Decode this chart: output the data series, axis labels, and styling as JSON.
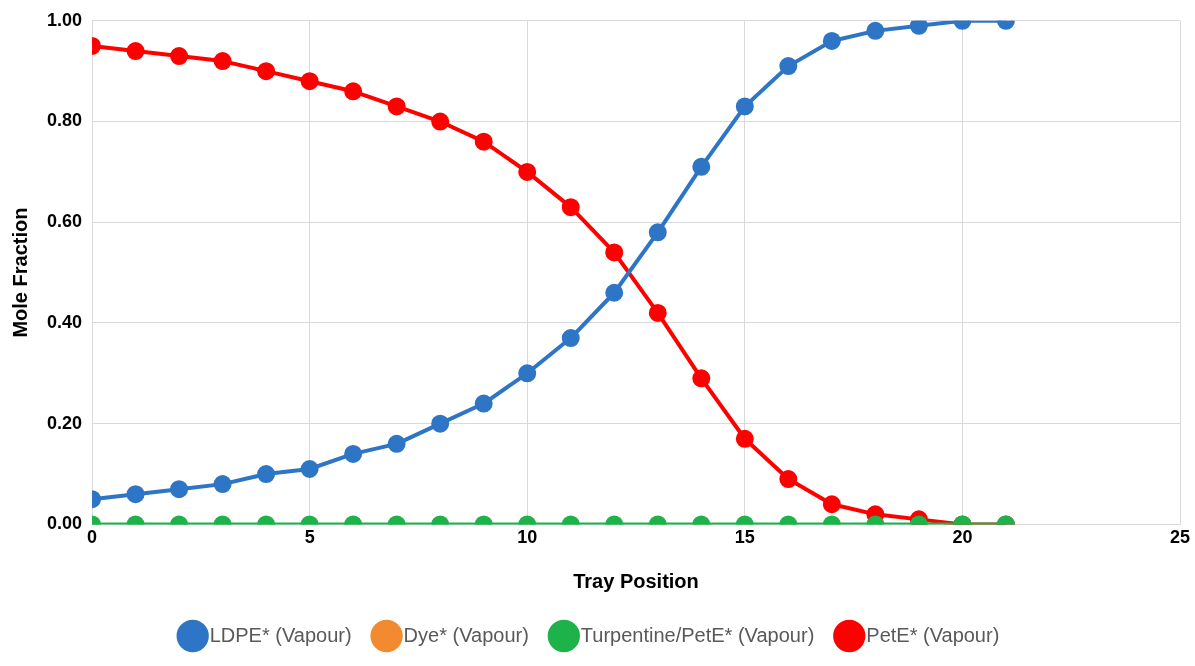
{
  "chart_data": {
    "type": "line",
    "xlabel": "Tray Position",
    "ylabel": "Mole Fraction",
    "x": [
      0,
      1,
      2,
      3,
      4,
      5,
      6,
      7,
      8,
      9,
      10,
      11,
      12,
      13,
      14,
      15,
      16,
      17,
      18,
      19,
      20,
      21
    ],
    "series": [
      {
        "name": "LDPE* (Vapour)",
        "color": "#2e75c6",
        "values": [
          0.05,
          0.06,
          0.07,
          0.08,
          0.1,
          0.11,
          0.14,
          0.16,
          0.2,
          0.24,
          0.3,
          0.37,
          0.46,
          0.58,
          0.71,
          0.83,
          0.91,
          0.96,
          0.98,
          0.99,
          1.0,
          1.0
        ]
      },
      {
        "name": "Dye* (Vapour)",
        "color": "#f28a30",
        "values": [
          null,
          null,
          null,
          null,
          null,
          null,
          null,
          null,
          null,
          null,
          null,
          null,
          null,
          null,
          null,
          null,
          null,
          null,
          null,
          null,
          null,
          null
        ]
      },
      {
        "name": "Turpentine/PetE* (Vapour)",
        "color": "#1db34a",
        "values": [
          0,
          0,
          0,
          0,
          0,
          0,
          0,
          0,
          0,
          0,
          0,
          0,
          0,
          0,
          0,
          0,
          0,
          0,
          0,
          0,
          0,
          0
        ]
      },
      {
        "name": "PetE* (Vapour)",
        "color": "#ff0000",
        "values": [
          0.95,
          0.94,
          0.93,
          0.92,
          0.9,
          0.88,
          0.86,
          0.83,
          0.8,
          0.76,
          0.7,
          0.63,
          0.54,
          0.42,
          0.29,
          0.17,
          0.09,
          0.04,
          0.02,
          0.01,
          0.0,
          0.0
        ]
      }
    ],
    "xlim": [
      0,
      25
    ],
    "xticks": [
      0,
      5,
      10,
      15,
      20,
      25
    ],
    "ylim": [
      0,
      1
    ],
    "yticks": [
      {
        "value": 0,
        "label": "0.00"
      },
      {
        "value": 0.2,
        "label": "0.20"
      },
      {
        "value": 0.4,
        "label": "0.40"
      },
      {
        "value": 0.6,
        "label": "0.60"
      },
      {
        "value": 0.8,
        "label": "0.80"
      },
      {
        "value": 1,
        "label": "1.00"
      }
    ],
    "grid": true,
    "legend": "bottom",
    "marker": "circle",
    "line_style": "solid"
  }
}
